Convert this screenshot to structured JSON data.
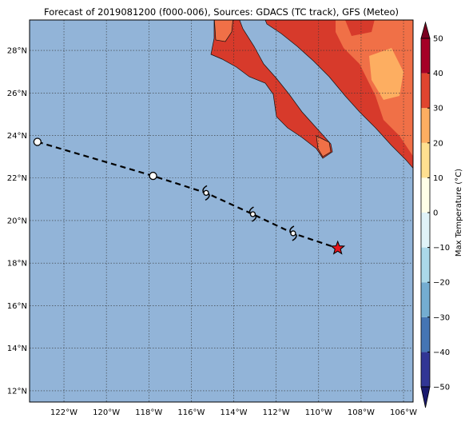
{
  "title": "Forecast of 2019081200 (f000-006), Sources: GDACS (TC track), GFS (Meteo)",
  "map": {
    "lon_range": [
      -123.62,
      -105.55
    ],
    "lat_range": [
      11.47,
      29.43
    ],
    "lon_ticks": [
      {
        "value": -122,
        "label": "122°W"
      },
      {
        "value": -120,
        "label": "120°W"
      },
      {
        "value": -118,
        "label": "118°W"
      },
      {
        "value": -116,
        "label": "116°W"
      },
      {
        "value": -114,
        "label": "114°W"
      },
      {
        "value": -112,
        "label": "112°W"
      },
      {
        "value": -110,
        "label": "110°W"
      },
      {
        "value": -108,
        "label": "108°W"
      },
      {
        "value": -106,
        "label": "106°W"
      }
    ],
    "lat_ticks": [
      {
        "value": 12,
        "label": "12°N"
      },
      {
        "value": 14,
        "label": "14°N"
      },
      {
        "value": 16,
        "label": "16°N"
      },
      {
        "value": 18,
        "label": "18°N"
      },
      {
        "value": 20,
        "label": "20°N"
      },
      {
        "value": 22,
        "label": "22°N"
      },
      {
        "value": 24,
        "label": "24°N"
      },
      {
        "value": 26,
        "label": "26°N"
      },
      {
        "value": 28,
        "label": "28°N"
      }
    ]
  },
  "track": {
    "points": [
      {
        "lon": -123.25,
        "lat": 23.7,
        "marker": "circle"
      },
      {
        "lon": -117.8,
        "lat": 22.1,
        "marker": "circle"
      },
      {
        "lon": -115.3,
        "lat": 21.3,
        "marker": "hurricane"
      },
      {
        "lon": -113.1,
        "lat": 20.3,
        "marker": "hurricane"
      },
      {
        "lon": -111.2,
        "lat": 19.4,
        "marker": "hurricane"
      },
      {
        "lon": -109.1,
        "lat": 18.7,
        "marker": "star"
      }
    ]
  },
  "colorbar": {
    "label": "Max Temperature (°C)",
    "range": [
      -50,
      50
    ],
    "ticks": [
      {
        "value": -50,
        "label": "−50"
      },
      {
        "value": -40,
        "label": "−40"
      },
      {
        "value": -30,
        "label": "−30"
      },
      {
        "value": -20,
        "label": "−20"
      },
      {
        "value": -10,
        "label": "−10"
      },
      0,
      10,
      20,
      30,
      40,
      50
    ],
    "colors": [
      "#313695",
      "#4575b4",
      "#74add1",
      "#abd9e9",
      "#e0f3f8",
      "#fefee8",
      "#fee090",
      "#fdae61",
      "#e0452f",
      "#a50026"
    ],
    "under_color": "#1a1a6e",
    "over_color": "#7a0020"
  }
}
